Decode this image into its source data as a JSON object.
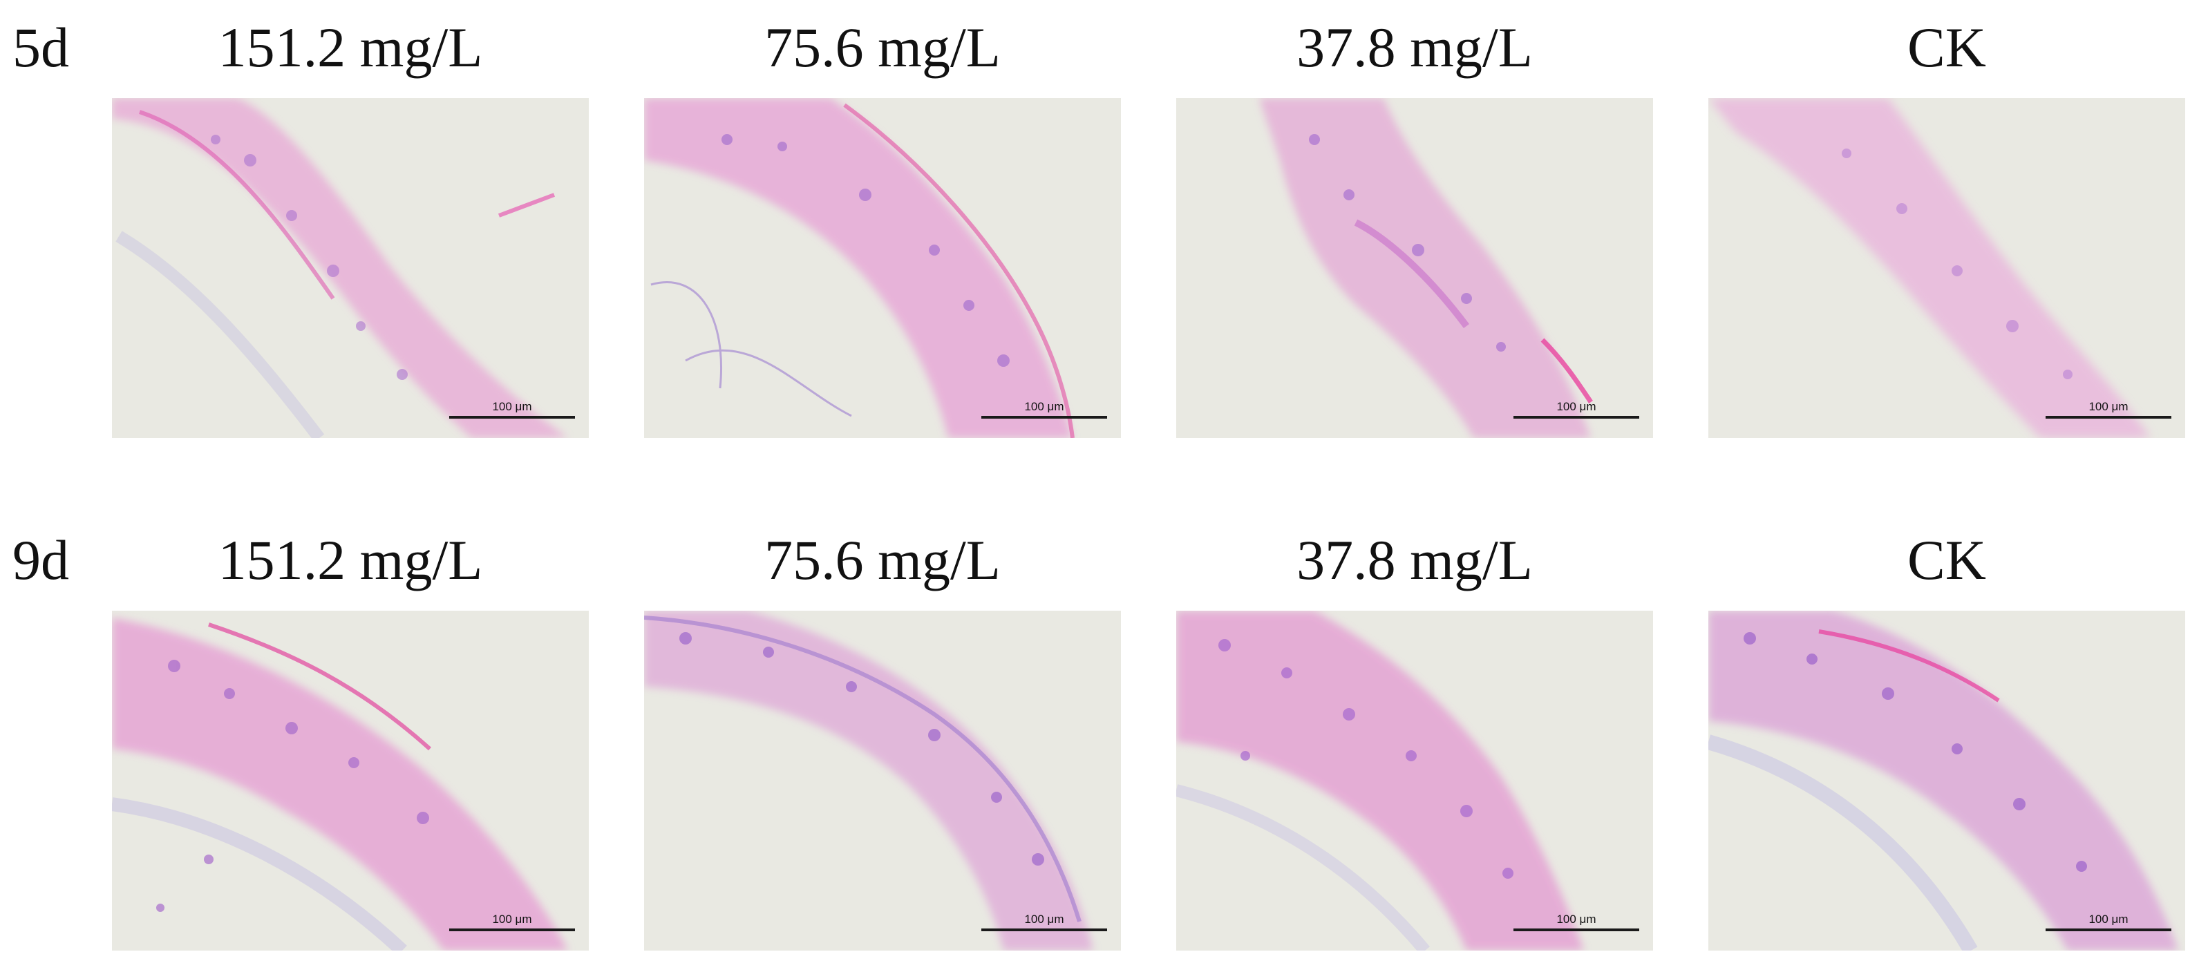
{
  "rows": [
    {
      "label": "5d"
    },
    {
      "label": "9d"
    }
  ],
  "columns": [
    {
      "label": "151.2 mg/L"
    },
    {
      "label": "75.6 mg/L"
    },
    {
      "label": "37.8 mg/L"
    },
    {
      "label": "CK"
    }
  ],
  "scale_bar_label": "100 μm",
  "colors": {
    "background": "#e9e9e2",
    "eosin_pink": "#e67fc2",
    "hematoxylin_purple": "#9a6ec4",
    "scale_bar": "#1a1a1a"
  }
}
